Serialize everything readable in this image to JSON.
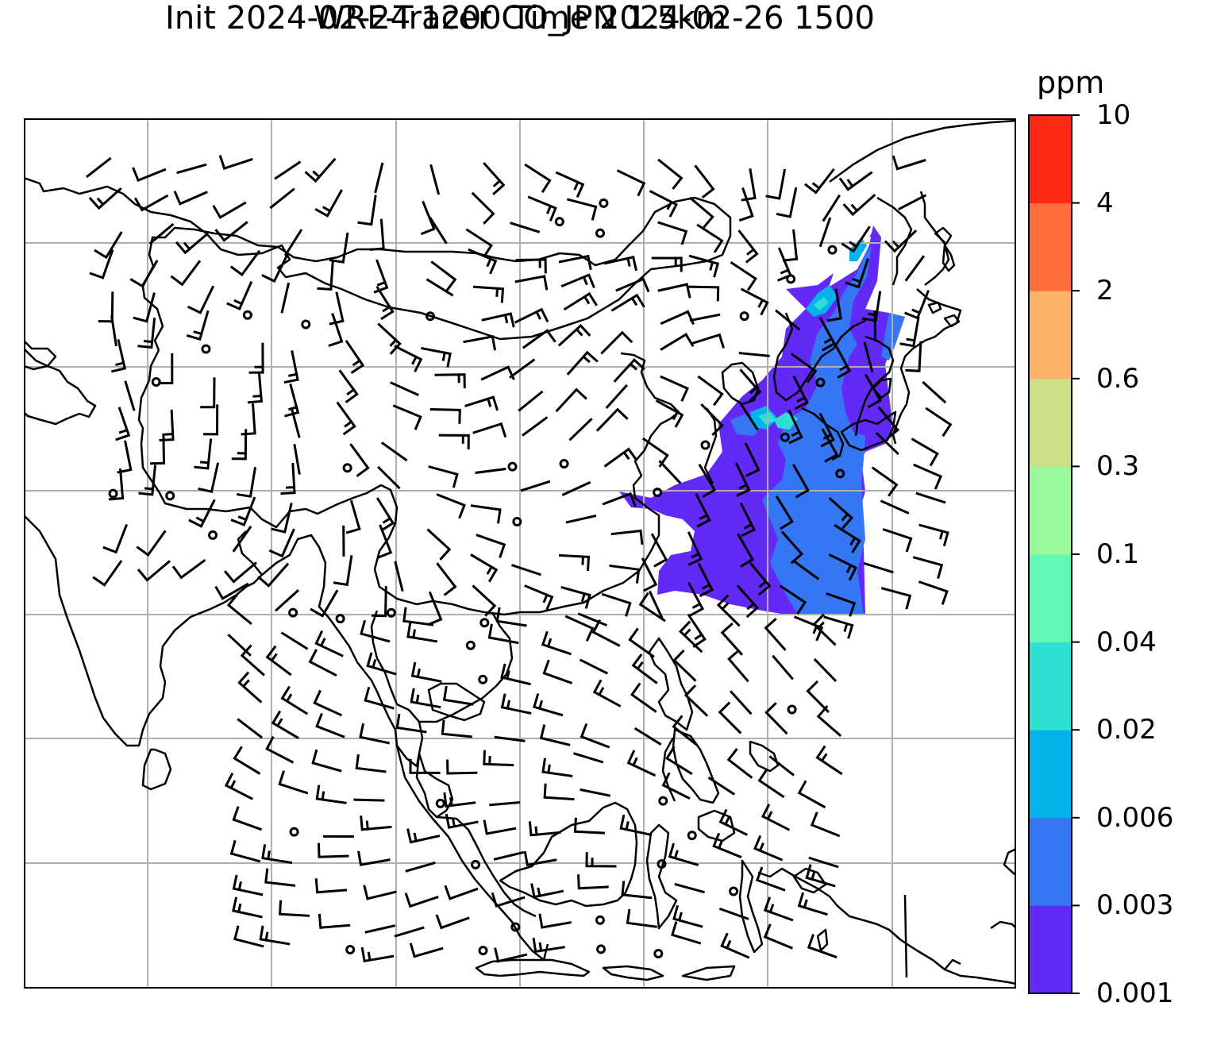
{
  "title_line1": "WRF-Tracer CO_JPN 1.5km",
  "title_line2": "Init 2024-02-24 1200 Time 2024-02-26 1500",
  "colorbar": {
    "unit": "ppm",
    "levels": [
      "0.001",
      "0.003",
      "0.006",
      "0.02",
      "0.04",
      "0.1",
      "0.3",
      "0.6",
      "2",
      "4",
      "10"
    ],
    "colors": [
      "#6229f7",
      "#3476f3",
      "#04b3ea",
      "#2edfd2",
      "#62f6b7",
      "#9afa99",
      "#cbe087",
      "#fcb268",
      "#fe6f3c",
      "#fc2913"
    ]
  },
  "map": {
    "projection_lines": "graticule",
    "plume_colors": [
      "#6229f7",
      "#3476f3",
      "#04b3ea",
      "#2edfd2"
    ]
  }
}
